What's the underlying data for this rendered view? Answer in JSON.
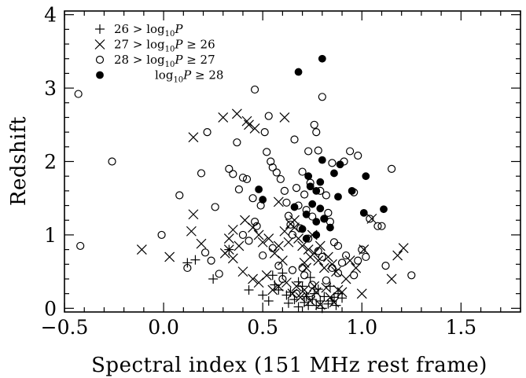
{
  "chart_data": {
    "type": "scatter",
    "title": "",
    "xlabel": "Spectral index (151 MHz rest frame)",
    "ylabel": "Redshift",
    "xlim": [
      -0.5,
      1.8
    ],
    "ylim": [
      -0.05,
      4.05
    ],
    "x_ticks": [
      -0.5,
      0.0,
      0.5,
      1.0,
      1.5
    ],
    "x_tick_labels": [
      "−0.5",
      "0.0",
      "0.5",
      "1.0",
      "1.5"
    ],
    "y_ticks": [
      0,
      1,
      2,
      3,
      4
    ],
    "y_tick_labels": [
      "0",
      "1",
      "2",
      "3",
      "4"
    ],
    "legend": {
      "position": "top-left"
    },
    "series": [
      {
        "name": "26 > log10P",
        "legend_parts": [
          "26 > log",
          "10",
          "P",
          ""
        ],
        "marker": "plus",
        "points": [
          [
            0.16,
            0.66
          ],
          [
            0.12,
            0.62
          ],
          [
            0.25,
            0.4
          ],
          [
            0.33,
            0.8
          ],
          [
            0.43,
            0.25
          ],
          [
            0.5,
            0.18
          ],
          [
            0.53,
            0.1
          ],
          [
            0.56,
            0.32
          ],
          [
            0.58,
            0.25
          ],
          [
            0.6,
            0.48
          ],
          [
            0.62,
            0.18
          ],
          [
            0.63,
            0.07
          ],
          [
            0.66,
            0.12
          ],
          [
            0.68,
            0.02
          ],
          [
            0.7,
            0.3
          ],
          [
            0.71,
            0.08
          ],
          [
            0.72,
            0.16
          ],
          [
            0.73,
            0.04
          ],
          [
            0.75,
            0.12
          ],
          [
            0.76,
            0.2
          ],
          [
            0.77,
            0.04
          ],
          [
            0.78,
            0.26
          ],
          [
            0.79,
            0.1
          ],
          [
            0.8,
            0.0
          ],
          [
            0.81,
            0.16
          ],
          [
            0.83,
            0.06
          ],
          [
            0.84,
            0.3
          ],
          [
            0.85,
            0.1
          ],
          [
            0.87,
            0.04
          ],
          [
            0.88,
            0.2
          ],
          [
            0.9,
            0.14
          ],
          [
            0.74,
            0.42
          ],
          [
            0.68,
            0.36
          ],
          [
            0.55,
            0.45
          ],
          [
            0.64,
            0.22
          ],
          [
            0.86,
            0.15
          ]
        ]
      },
      {
        "name": "27 > log10P ≥ 26",
        "legend_parts": [
          "27 > log",
          "10",
          "P ≥ 26",
          ""
        ],
        "marker": "cross",
        "points": [
          [
            0.15,
            2.33
          ],
          [
            -0.11,
            0.8
          ],
          [
            0.03,
            0.7
          ],
          [
            0.15,
            1.28
          ],
          [
            0.14,
            1.05
          ],
          [
            0.19,
            0.88
          ],
          [
            0.3,
            2.6
          ],
          [
            0.37,
            2.65
          ],
          [
            0.43,
            2.5
          ],
          [
            0.42,
            2.55
          ],
          [
            0.46,
            2.45
          ],
          [
            0.61,
            2.6
          ],
          [
            0.31,
            0.75
          ],
          [
            0.33,
            0.8
          ],
          [
            0.35,
            0.68
          ],
          [
            0.33,
            0.95
          ],
          [
            0.35,
            1.07
          ],
          [
            0.38,
            0.85
          ],
          [
            0.41,
            1.2
          ],
          [
            0.45,
            1.1
          ],
          [
            0.48,
            1.0
          ],
          [
            0.5,
            0.9
          ],
          [
            0.53,
            0.95
          ],
          [
            0.56,
            0.75
          ],
          [
            0.58,
            0.85
          ],
          [
            0.6,
            0.65
          ],
          [
            0.61,
            1.05
          ],
          [
            0.63,
            0.9
          ],
          [
            0.64,
            1.15
          ],
          [
            0.66,
            1.1
          ],
          [
            0.68,
            0.95
          ],
          [
            0.7,
            0.85
          ],
          [
            0.71,
            0.62
          ],
          [
            0.72,
            0.55
          ],
          [
            0.73,
            0.8
          ],
          [
            0.74,
            0.7
          ],
          [
            0.75,
            1.0
          ],
          [
            0.76,
            0.75
          ],
          [
            0.78,
            0.65
          ],
          [
            0.79,
            0.85
          ],
          [
            0.81,
            0.55
          ],
          [
            0.83,
            0.7
          ],
          [
            0.85,
            0.6
          ],
          [
            0.87,
            0.5
          ],
          [
            0.4,
            0.5
          ],
          [
            0.45,
            0.4
          ],
          [
            0.48,
            0.35
          ],
          [
            0.52,
            0.45
          ],
          [
            0.55,
            0.25
          ],
          [
            0.58,
            0.3
          ],
          [
            0.62,
            0.35
          ],
          [
            0.65,
            0.2
          ],
          [
            0.67,
            0.3
          ],
          [
            0.69,
            0.15
          ],
          [
            0.71,
            0.25
          ],
          [
            0.72,
            0.18
          ],
          [
            0.74,
            0.1
          ],
          [
            0.76,
            0.3
          ],
          [
            0.77,
            0.22
          ],
          [
            0.79,
            0.05
          ],
          [
            0.82,
            0.28
          ],
          [
            0.84,
            0.15
          ],
          [
            0.86,
            0.08
          ],
          [
            0.88,
            0.25
          ],
          [
            0.9,
            0.22
          ],
          [
            0.92,
            0.4
          ],
          [
            1.01,
            0.8
          ],
          [
            1.0,
            0.2
          ],
          [
            1.05,
            1.22
          ],
          [
            1.15,
            0.4
          ],
          [
            1.18,
            0.72
          ],
          [
            1.21,
            0.82
          ],
          [
            0.94,
            0.65
          ],
          [
            0.97,
            0.55
          ],
          [
            0.58,
            1.45
          ],
          [
            0.66,
            1.2
          ]
        ]
      },
      {
        "name": "28 > log10P ≥ 27",
        "legend_parts": [
          "28 > log",
          "10",
          "P ≥ 27",
          ""
        ],
        "marker": "open",
        "points": [
          [
            -0.43,
            2.92
          ],
          [
            -0.42,
            0.85
          ],
          [
            -0.26,
            2.0
          ],
          [
            -0.01,
            1.0
          ],
          [
            0.08,
            1.54
          ],
          [
            0.12,
            0.55
          ],
          [
            0.22,
            2.4
          ],
          [
            0.26,
            1.38
          ],
          [
            0.28,
            0.47
          ],
          [
            0.19,
            1.84
          ],
          [
            0.21,
            0.76
          ],
          [
            0.33,
            1.9
          ],
          [
            0.35,
            1.83
          ],
          [
            0.37,
            2.26
          ],
          [
            0.4,
            1.78
          ],
          [
            0.42,
            1.76
          ],
          [
            0.45,
            1.5
          ],
          [
            0.46,
            1.18
          ],
          [
            0.47,
            1.12
          ],
          [
            0.49,
            1.4
          ],
          [
            0.51,
            2.4
          ],
          [
            0.52,
            2.13
          ],
          [
            0.53,
            2.62
          ],
          [
            0.54,
            2.0
          ],
          [
            0.55,
            1.92
          ],
          [
            0.57,
            1.85
          ],
          [
            0.59,
            1.76
          ],
          [
            0.61,
            1.6
          ],
          [
            0.62,
            1.44
          ],
          [
            0.63,
            1.26
          ],
          [
            0.64,
            1.14
          ],
          [
            0.65,
            1.0
          ],
          [
            0.66,
            2.3
          ],
          [
            0.67,
            1.64
          ],
          [
            0.68,
            1.4
          ],
          [
            0.69,
            1.09
          ],
          [
            0.7,
            1.86
          ],
          [
            0.71,
            1.55
          ],
          [
            0.72,
            1.34
          ],
          [
            0.73,
            2.14
          ],
          [
            0.74,
            1.71
          ],
          [
            0.75,
            1.25
          ],
          [
            0.76,
            2.5
          ],
          [
            0.77,
            2.4
          ],
          [
            0.78,
            2.15
          ],
          [
            0.79,
            1.6
          ],
          [
            0.8,
            2.88
          ],
          [
            0.81,
            1.22
          ],
          [
            0.82,
            1.54
          ],
          [
            0.83,
            1.3
          ],
          [
            0.84,
            1.18
          ],
          [
            0.86,
            0.9
          ],
          [
            0.88,
            0.85
          ],
          [
            0.9,
            0.62
          ],
          [
            0.92,
            0.72
          ],
          [
            0.94,
            2.14
          ],
          [
            0.96,
            1.58
          ],
          [
            0.98,
            2.08
          ],
          [
            1.0,
            0.8
          ],
          [
            1.02,
            0.7
          ],
          [
            1.04,
            1.22
          ],
          [
            1.08,
            1.12
          ],
          [
            1.1,
            1.12
          ],
          [
            1.15,
            1.9
          ],
          [
            1.25,
            0.45
          ],
          [
            0.46,
            2.98
          ],
          [
            0.5,
            0.72
          ],
          [
            0.55,
            0.82
          ],
          [
            0.58,
            0.58
          ],
          [
            0.6,
            0.4
          ],
          [
            0.65,
            0.52
          ],
          [
            0.67,
            0.2
          ],
          [
            0.71,
            0.45
          ],
          [
            0.73,
            0.95
          ],
          [
            0.75,
            0.32
          ],
          [
            0.78,
            0.78
          ],
          [
            0.82,
            0.38
          ],
          [
            0.85,
            0.55
          ],
          [
            0.88,
            0.48
          ],
          [
            0.96,
            0.45
          ],
          [
            0.98,
            0.65
          ],
          [
            1.12,
            0.58
          ],
          [
            0.4,
            1.0
          ],
          [
            0.43,
            0.92
          ],
          [
            0.91,
            2.0
          ],
          [
            0.24,
            0.65
          ],
          [
            0.38,
            1.62
          ],
          [
            0.7,
            0.55
          ],
          [
            0.85,
            1.98
          ],
          [
            0.8,
            0.7
          ]
        ]
      },
      {
        "name": "log10P ≥ 28",
        "legend_parts": [
          "",
          "10",
          "P ≥ 28",
          "log"
        ],
        "marker": "filled",
        "points": [
          [
            0.8,
            3.4
          ],
          [
            0.68,
            3.22
          ],
          [
            0.66,
            1.38
          ],
          [
            0.73,
            1.8
          ],
          [
            0.77,
            1.6
          ],
          [
            0.79,
            1.72
          ],
          [
            0.8,
            2.02
          ],
          [
            0.86,
            1.84
          ],
          [
            0.89,
            1.96
          ],
          [
            0.88,
            1.52
          ],
          [
            0.75,
            1.42
          ],
          [
            0.72,
            1.28
          ],
          [
            0.7,
            1.08
          ],
          [
            0.77,
            1.18
          ],
          [
            0.79,
            1.36
          ],
          [
            0.81,
            1.22
          ],
          [
            0.74,
            1.66
          ],
          [
            0.95,
            1.6
          ],
          [
            1.02,
            1.8
          ],
          [
            1.11,
            1.35
          ],
          [
            1.01,
            1.3
          ],
          [
            0.48,
            1.62
          ],
          [
            0.5,
            1.48
          ],
          [
            0.72,
            0.95
          ],
          [
            0.77,
            1.0
          ],
          [
            0.84,
            1.1
          ]
        ]
      }
    ]
  }
}
